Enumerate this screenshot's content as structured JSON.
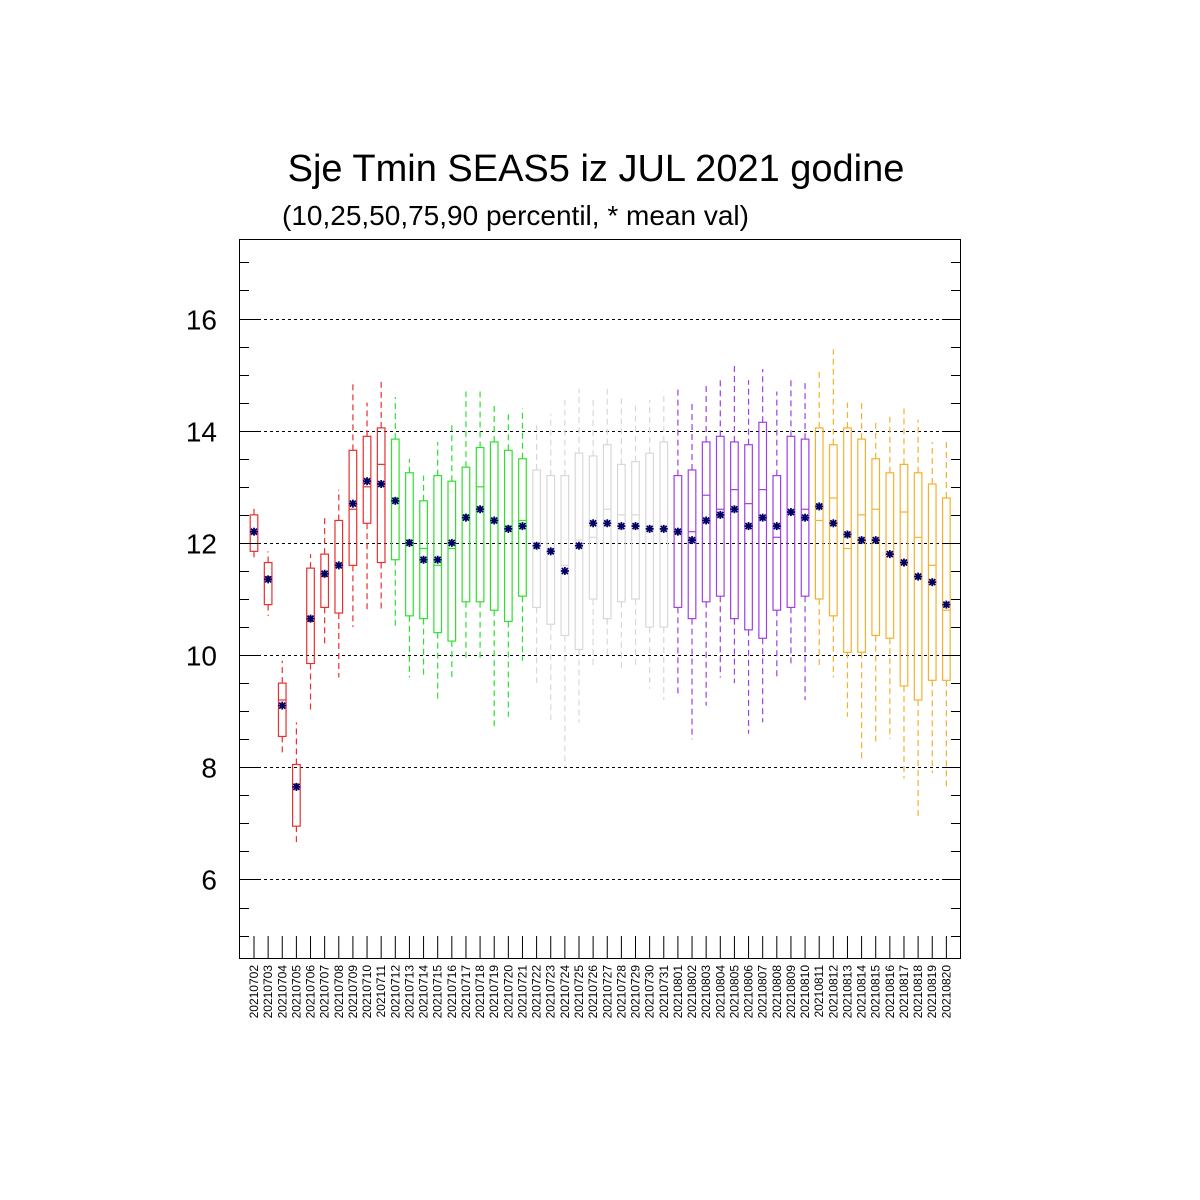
{
  "chart_data": {
    "type": "boxplot",
    "title": "Sje Tmin SEAS5 iz JUL 2021 godine",
    "subtitle": "(10,25,50,75,90 percentil, * mean val)",
    "xlabel": "",
    "ylabel": "",
    "ylim": [
      4.6,
      17.4
    ],
    "yticks": [
      6,
      8,
      10,
      12,
      14,
      16
    ],
    "ytick_labels": [
      "6",
      "8",
      "10",
      "12",
      "14",
      "16"
    ],
    "grid": "dashed horizontal at major y ticks",
    "mean_color": "#000066",
    "month_colors": {
      "jul_a": "#e83030",
      "jul_b": "#30e030",
      "jul_c": "#d8d8d8",
      "aug_a": "#a040e0",
      "aug_b": "#f5b030"
    },
    "categories": [
      "20210702",
      "20210703",
      "20210704",
      "20210705",
      "20210706",
      "20210707",
      "20210708",
      "20210709",
      "20210710",
      "20210711",
      "20210712",
      "20210713",
      "20210714",
      "20210715",
      "20210716",
      "20210717",
      "20210718",
      "20210719",
      "20210720",
      "20210721",
      "20210722",
      "20210723",
      "20210724",
      "20210725",
      "20210726",
      "20210727",
      "20210728",
      "20210729",
      "20210730",
      "20210731",
      "20210801",
      "20210802",
      "20210803",
      "20210804",
      "20210805",
      "20210806",
      "20210807",
      "20210808",
      "20210809",
      "20210810",
      "20210811",
      "20210812",
      "20210813",
      "20210814",
      "20210815",
      "20210816",
      "20210817",
      "20210818",
      "20210819",
      "20210820"
    ],
    "color_groups": [
      "jul_a",
      "jul_a",
      "jul_a",
      "jul_a",
      "jul_a",
      "jul_a",
      "jul_a",
      "jul_a",
      "jul_a",
      "jul_a",
      "jul_b",
      "jul_b",
      "jul_b",
      "jul_b",
      "jul_b",
      "jul_b",
      "jul_b",
      "jul_b",
      "jul_b",
      "jul_b",
      "jul_c",
      "jul_c",
      "jul_c",
      "jul_c",
      "jul_c",
      "jul_c",
      "jul_c",
      "jul_c",
      "jul_c",
      "jul_c",
      "aug_a",
      "aug_a",
      "aug_a",
      "aug_a",
      "aug_a",
      "aug_a",
      "aug_a",
      "aug_a",
      "aug_a",
      "aug_a",
      "aug_b",
      "aug_b",
      "aug_b",
      "aug_b",
      "aug_b",
      "aug_b",
      "aug_b",
      "aug_b",
      "aug_b",
      "aug_b"
    ],
    "p10": [
      11.7,
      10.7,
      8.2,
      6.6,
      9.0,
      10.2,
      9.6,
      10.5,
      10.8,
      10.8,
      10.5,
      9.6,
      9.6,
      9.2,
      9.6,
      9.9,
      9.9,
      8.7,
      8.9,
      9.9,
      9.5,
      8.8,
      8.0,
      8.8,
      9.8,
      10.0,
      9.7,
      9.8,
      9.4,
      9.2,
      9.3,
      8.5,
      9.1,
      9.6,
      9.5,
      8.6,
      8.8,
      9.6,
      9.8,
      9.2,
      9.8,
      9.6,
      8.9,
      8.1,
      8.4,
      8.5,
      7.8,
      7.1,
      7.9,
      7.6
    ],
    "p25": [
      11.85,
      10.9,
      8.55,
      6.95,
      9.85,
      10.85,
      10.75,
      11.6,
      12.35,
      11.65,
      11.7,
      10.7,
      10.65,
      10.4,
      10.25,
      10.95,
      10.95,
      10.8,
      10.6,
      11.05,
      10.85,
      10.55,
      10.35,
      10.1,
      11.0,
      10.65,
      10.95,
      11.0,
      10.5,
      10.5,
      10.85,
      10.65,
      10.95,
      11.05,
      10.65,
      10.45,
      10.3,
      10.8,
      10.85,
      11.05,
      11.0,
      10.7,
      10.05,
      10.05,
      10.35,
      10.3,
      9.45,
      9.2,
      9.55,
      9.55
    ],
    "p50": [
      12.2,
      11.4,
      9.2,
      7.7,
      10.6,
      11.4,
      11.6,
      12.6,
      13.0,
      13.4,
      12.8,
      12.05,
      11.9,
      11.6,
      11.9,
      12.5,
      13.0,
      12.4,
      12.3,
      12.4,
      11.9,
      11.9,
      11.6,
      12.05,
      12.1,
      12.6,
      12.5,
      12.5,
      12.3,
      12.3,
      12.2,
      12.2,
      12.85,
      12.6,
      12.95,
      12.7,
      12.95,
      12.1,
      12.55,
      12.6,
      12.4,
      12.8,
      11.9,
      12.5,
      12.6,
      11.8,
      12.55,
      12.1,
      11.6,
      10.8
    ],
    "p75": [
      12.5,
      11.65,
      9.5,
      8.05,
      11.55,
      11.8,
      12.4,
      13.65,
      13.9,
      14.05,
      13.85,
      13.25,
      12.75,
      13.2,
      13.1,
      13.35,
      13.7,
      13.8,
      13.65,
      13.5,
      13.3,
      13.2,
      13.2,
      13.6,
      13.55,
      13.75,
      13.4,
      13.45,
      13.6,
      13.8,
      13.2,
      13.3,
      13.8,
      13.9,
      13.8,
      13.75,
      14.15,
      13.2,
      13.9,
      13.85,
      14.05,
      13.75,
      14.05,
      13.85,
      13.5,
      13.25,
      13.4,
      13.25,
      13.05,
      12.8
    ],
    "p90": [
      12.65,
      11.85,
      9.9,
      8.8,
      11.8,
      12.5,
      12.95,
      14.9,
      14.5,
      14.9,
      14.6,
      13.5,
      13.2,
      13.8,
      14.1,
      14.7,
      14.7,
      14.5,
      14.3,
      14.4,
      14.1,
      14.3,
      14.55,
      14.75,
      14.6,
      14.8,
      14.6,
      14.5,
      14.55,
      14.7,
      14.8,
      14.5,
      14.85,
      14.9,
      15.2,
      14.9,
      15.1,
      14.7,
      14.9,
      14.85,
      15.1,
      15.45,
      14.5,
      14.5,
      14.2,
      14.3,
      14.4,
      14.2,
      13.8,
      13.8
    ],
    "mean": [
      12.2,
      11.35,
      9.1,
      7.65,
      10.65,
      11.45,
      11.6,
      12.7,
      13.1,
      13.05,
      12.75,
      12.0,
      11.7,
      11.7,
      12.0,
      12.45,
      12.6,
      12.4,
      12.25,
      12.3,
      11.95,
      11.85,
      11.5,
      11.95,
      12.35,
      12.35,
      12.3,
      12.3,
      12.25,
      12.25,
      12.2,
      12.05,
      12.4,
      12.5,
      12.6,
      12.3,
      12.45,
      12.3,
      12.55,
      12.45,
      12.65,
      12.35,
      12.15,
      12.05,
      12.05,
      11.8,
      11.65,
      11.4,
      11.3,
      10.9
    ]
  }
}
